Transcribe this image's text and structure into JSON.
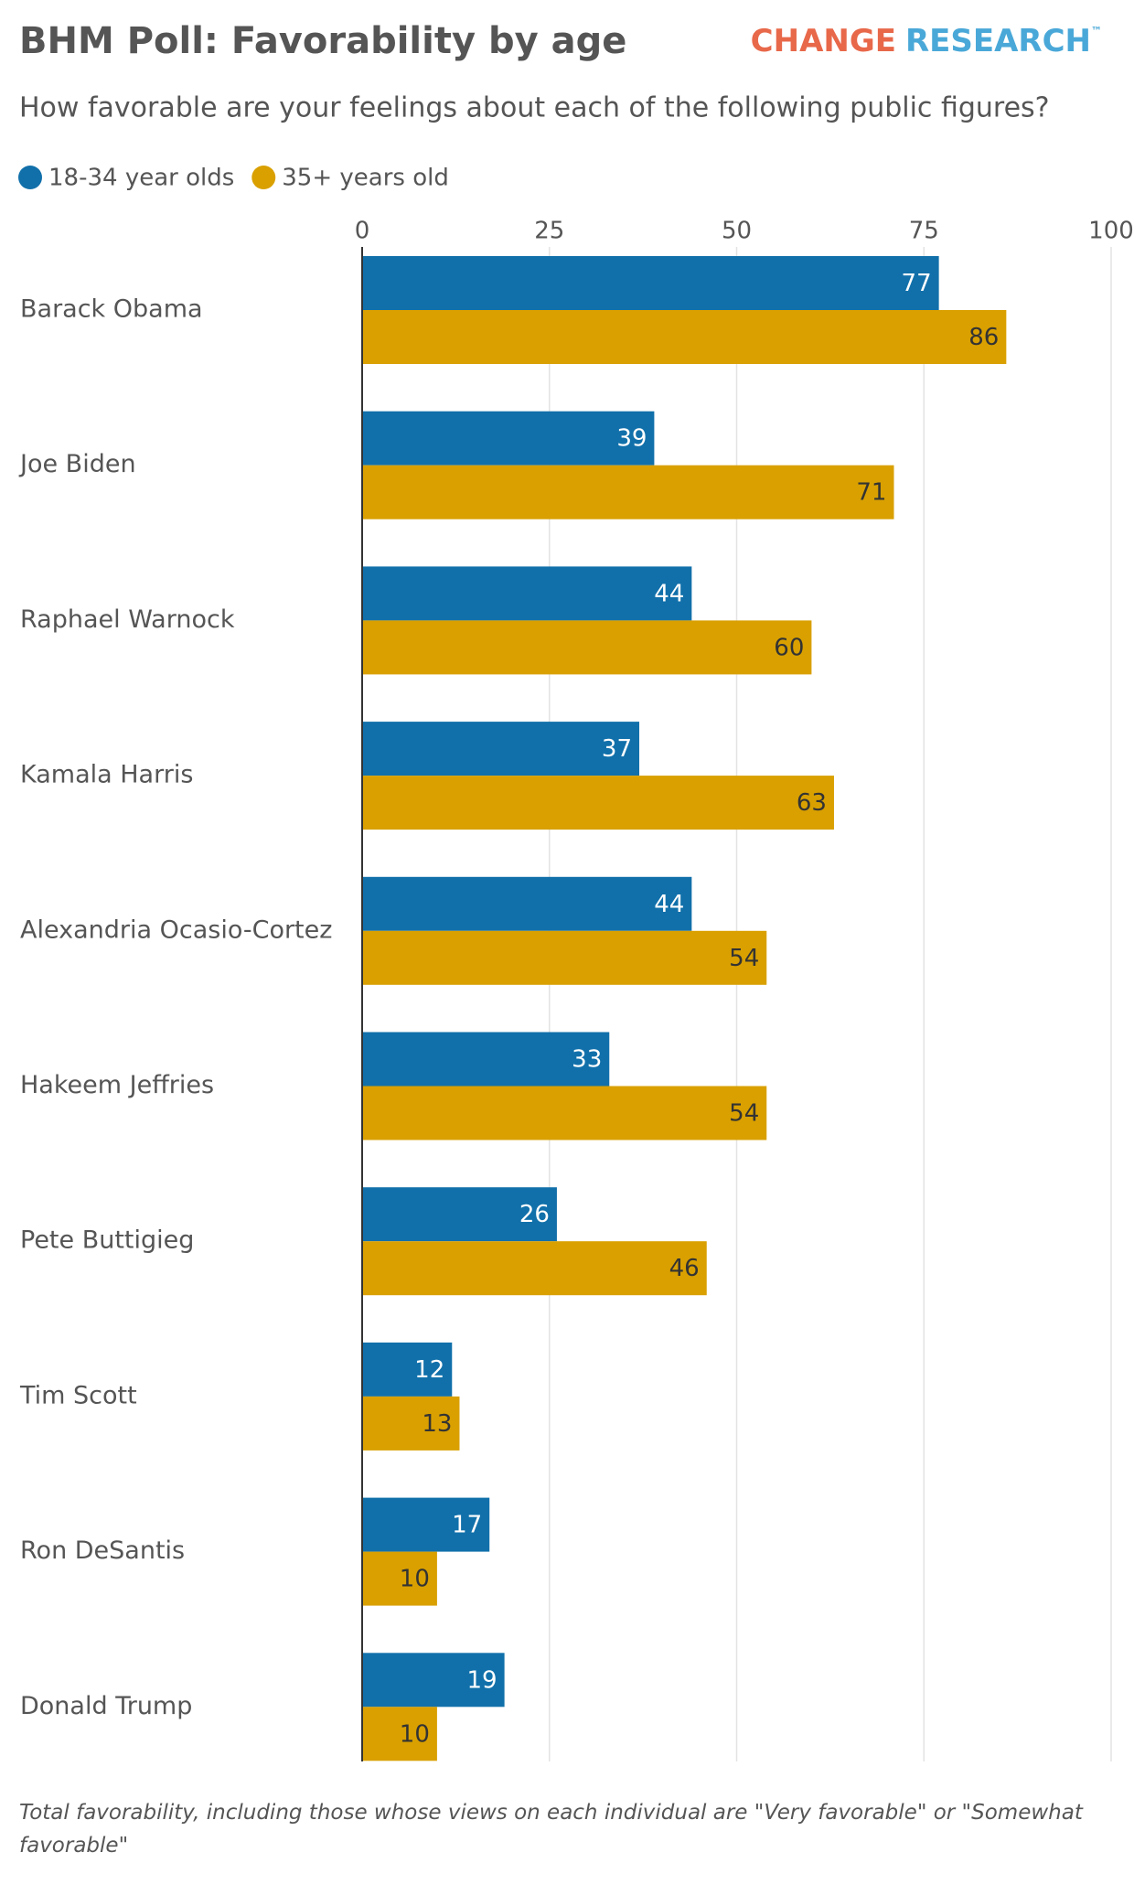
{
  "chart_data": {
    "type": "grouped-bar-horizontal",
    "title": "BHM Poll: Favorability by age",
    "logo": {
      "left": "CHANGE",
      "right": "RESEARCH",
      "mark": "™"
    },
    "subtitle": "How favorable are your feelings about each of the following public figures?",
    "categories": [
      "Barack Obama",
      "Joe Biden",
      "Raphael Warnock",
      "Kamala Harris",
      "Alexandria Ocasio-Cortez",
      "Hakeem Jeffries",
      "Pete Buttigieg",
      "Tim Scott",
      "Ron DeSantis",
      "Donald Trump"
    ],
    "series": [
      {
        "name": "18-34 year olds",
        "color": "#1170aa",
        "values": [
          77,
          39,
          44,
          37,
          44,
          33,
          26,
          12,
          17,
          19
        ]
      },
      {
        "name": "35+ years old",
        "color": "#d9a000",
        "values": [
          86,
          71,
          60,
          63,
          54,
          54,
          46,
          13,
          10,
          10
        ]
      }
    ],
    "xlim": [
      0,
      100
    ],
    "xticks": [
      0,
      25,
      50,
      75,
      100
    ],
    "grid": true,
    "footnote": "Total favorability, including those whose views on each individual are \"Very favorable\" or \"Somewhat favorable\""
  }
}
